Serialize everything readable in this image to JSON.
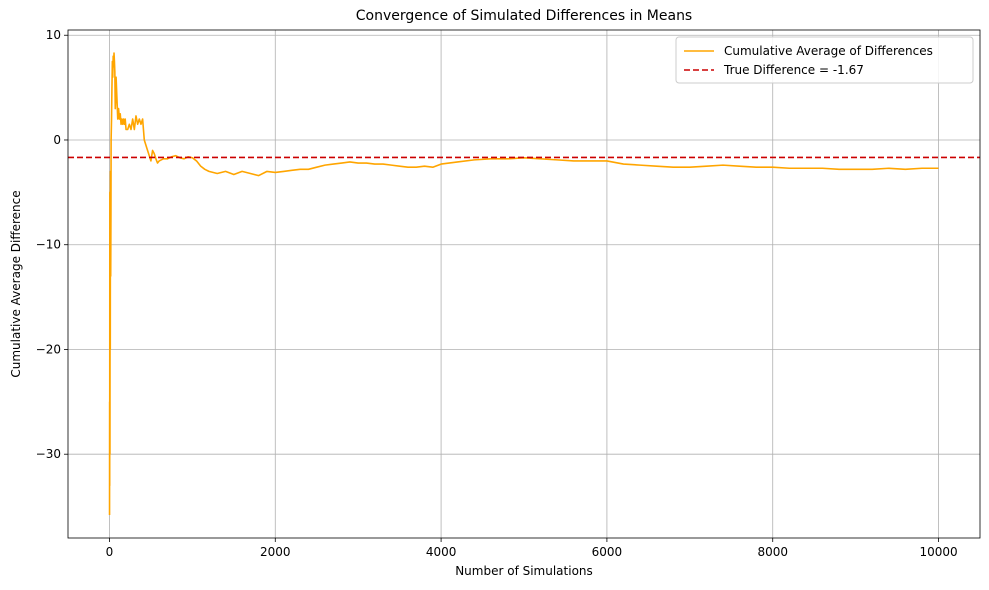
{
  "chart_data": {
    "type": "line",
    "title": "Convergence of Simulated Differences in Means",
    "xlabel": "Number of Simulations",
    "ylabel": "Cumulative Average Difference",
    "xlim": [
      -500,
      10500
    ],
    "ylim": [
      -38,
      10.5
    ],
    "xticks": [
      0,
      2000,
      4000,
      6000,
      8000,
      10000
    ],
    "yticks": [
      -30,
      -20,
      -10,
      0,
      10
    ],
    "grid": true,
    "legend_position": "top-right",
    "series": [
      {
        "name": "Cumulative Average of Differences",
        "color": "#ffa500",
        "style": "solid",
        "x": [
          1,
          2,
          3,
          4,
          5,
          6,
          8,
          10,
          12,
          15,
          18,
          20,
          25,
          30,
          35,
          40,
          45,
          50,
          55,
          60,
          65,
          70,
          75,
          80,
          90,
          100,
          110,
          120,
          130,
          140,
          150,
          160,
          170,
          180,
          190,
          200,
          220,
          240,
          260,
          280,
          300,
          320,
          340,
          360,
          380,
          400,
          420,
          440,
          460,
          480,
          500,
          520,
          540,
          560,
          580,
          600,
          650,
          700,
          750,
          800,
          850,
          900,
          950,
          1000,
          1050,
          1100,
          1150,
          1200,
          1300,
          1400,
          1500,
          1600,
          1700,
          1800,
          1900,
          2000,
          2100,
          2200,
          2300,
          2400,
          2500,
          2600,
          2700,
          2800,
          2900,
          3000,
          3100,
          3200,
          3300,
          3400,
          3500,
          3600,
          3700,
          3800,
          3900,
          4000,
          4200,
          4400,
          4600,
          4800,
          5000,
          5200,
          5400,
          5600,
          5800,
          6000,
          6200,
          6400,
          6600,
          6800,
          7000,
          7200,
          7400,
          7600,
          7800,
          8000,
          8200,
          8400,
          8600,
          8800,
          9000,
          9200,
          9400,
          9600,
          9800,
          10000
        ],
        "y": [
          -35.8,
          -25,
          -33,
          -12,
          -5,
          -30,
          -8,
          -20,
          -3,
          -13,
          -7,
          0,
          2,
          5,
          7.5,
          6,
          8,
          7,
          8.3,
          7.5,
          6.5,
          3,
          4,
          6,
          4,
          2,
          3,
          2,
          2.5,
          1.5,
          2,
          1.5,
          2,
          1.5,
          2,
          1,
          1,
          1.5,
          1,
          2,
          1,
          2.3,
          1.5,
          2,
          1.5,
          2,
          0,
          -0.5,
          -1,
          -1.5,
          -2,
          -1,
          -1.3,
          -1.8,
          -2.2,
          -2,
          -1.8,
          -1.8,
          -1.6,
          -1.5,
          -1.7,
          -1.8,
          -1.6,
          -1.7,
          -2,
          -2.5,
          -2.8,
          -3,
          -3.2,
          -3,
          -3.3,
          -3,
          -3.2,
          -3.4,
          -3,
          -3.1,
          -3,
          -2.9,
          -2.8,
          -2.8,
          -2.6,
          -2.4,
          -2.3,
          -2.2,
          -2.1,
          -2.2,
          -2.2,
          -2.3,
          -2.3,
          -2.4,
          -2.5,
          -2.6,
          -2.6,
          -2.5,
          -2.6,
          -2.3,
          -2.1,
          -1.9,
          -1.8,
          -1.8,
          -1.7,
          -1.8,
          -1.9,
          -2,
          -2,
          -2,
          -2.3,
          -2.4,
          -2.5,
          -2.6,
          -2.6,
          -2.5,
          -2.4,
          -2.5,
          -2.6,
          -2.6,
          -2.7,
          -2.7,
          -2.7,
          -2.8,
          -2.8,
          -2.8,
          -2.7,
          -2.8,
          -2.7,
          -2.7
        ]
      },
      {
        "name": "True Difference = -1.67",
        "color": "#cc0000",
        "style": "dashed",
        "y_constant": -1.67
      }
    ]
  }
}
